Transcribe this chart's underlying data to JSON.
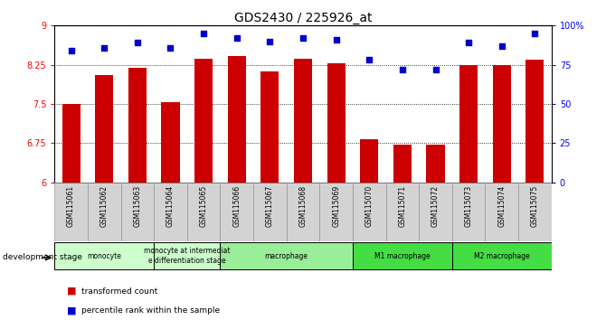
{
  "title": "GDS2430 / 225926_at",
  "samples": [
    "GSM115061",
    "GSM115062",
    "GSM115063",
    "GSM115064",
    "GSM115065",
    "GSM115066",
    "GSM115067",
    "GSM115068",
    "GSM115069",
    "GSM115070",
    "GSM115071",
    "GSM115072",
    "GSM115073",
    "GSM115074",
    "GSM115075"
  ],
  "bar_values": [
    7.5,
    8.05,
    8.19,
    7.54,
    8.36,
    8.42,
    8.13,
    8.36,
    8.28,
    6.83,
    6.73,
    6.73,
    8.25,
    8.25,
    8.35
  ],
  "dot_values": [
    84,
    86,
    89,
    86,
    95,
    92,
    90,
    92,
    91,
    78,
    72,
    72,
    89,
    87,
    95
  ],
  "ylim_left": [
    6,
    9
  ],
  "ylim_right": [
    0,
    100
  ],
  "yticks_left": [
    6,
    6.75,
    7.5,
    8.25,
    9
  ],
  "yticks_right": [
    0,
    25,
    50,
    75,
    100
  ],
  "bar_color": "#cc0000",
  "dot_color": "#0000cc",
  "group_bg_color": "#d0d0d0",
  "monocyte_color": "#ccffcc",
  "macrophage_color": "#99ee99",
  "m1m2_color": "#44dd44",
  "background_color": "#ffffff",
  "groups_def": [
    {
      "start": 0,
      "end": 3,
      "label": "monocyte",
      "color": "#ccffcc"
    },
    {
      "start": 3,
      "end": 5,
      "label": "monocyte at intermediat\ne differentiation stage",
      "color": "#ccffcc"
    },
    {
      "start": 5,
      "end": 9,
      "label": "macrophage",
      "color": "#99ee99"
    },
    {
      "start": 9,
      "end": 12,
      "label": "M1 macrophage",
      "color": "#44dd44"
    },
    {
      "start": 12,
      "end": 15,
      "label": "M2 macrophage",
      "color": "#44dd44"
    }
  ]
}
